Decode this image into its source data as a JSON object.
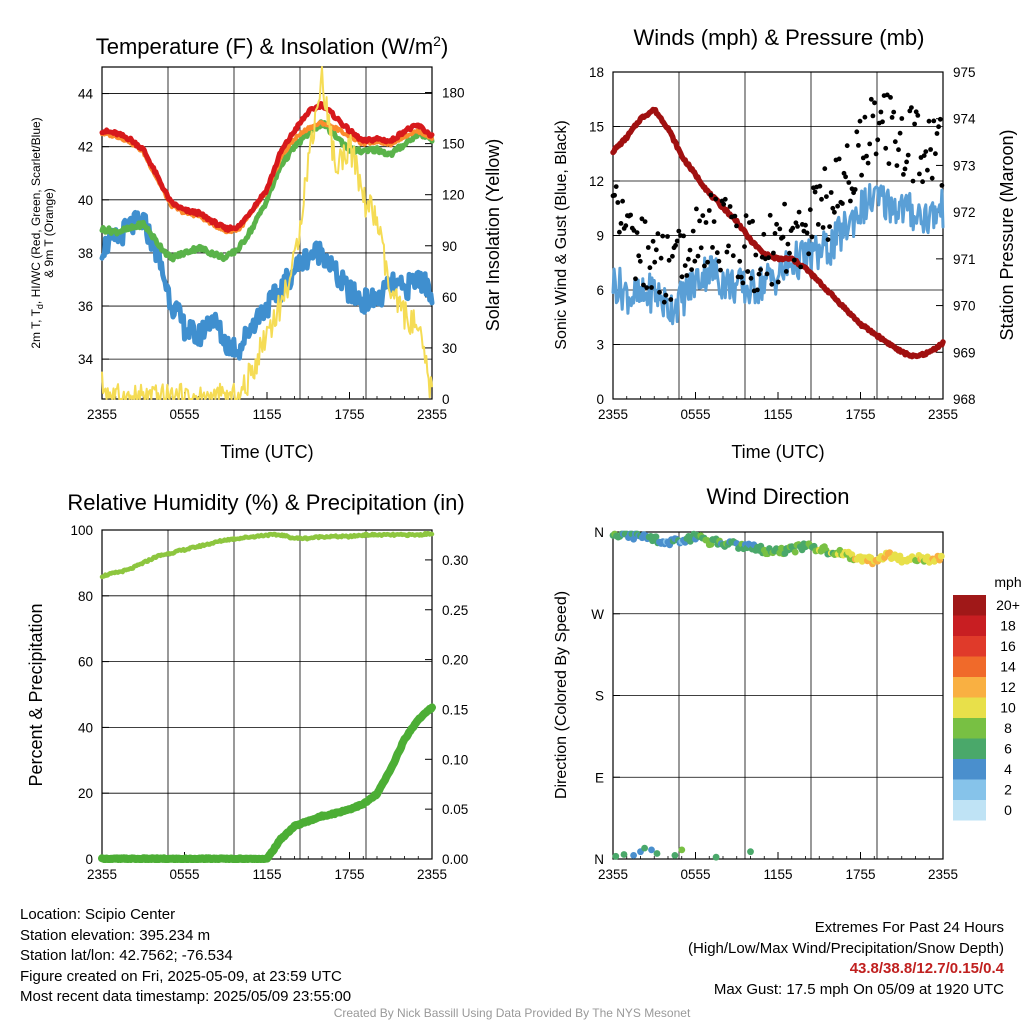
{
  "colors": {
    "red": "#d7191c",
    "orange": "#fb8c2c",
    "green": "#5ab34a",
    "blue": "#3f8fcf",
    "yellow": "#f5dc55",
    "maroon": "#a01010",
    "wind": "#5a9fd6",
    "gust": "#000000",
    "rh": "#8dc63f",
    "precip": "#4cae35"
  },
  "x_ticks": [
    "2355",
    "0555",
    "1155",
    "1755",
    "2355"
  ],
  "panels": {
    "temperature": {
      "title_main": "Temperature (F) & Insolation (W/m",
      "title_sup": "2",
      "title_end": ")",
      "xlabel": "Time (UTC)",
      "ylabel_left_lines": [
        "2m T, T",
        "d",
        ", HI/WC (Red, Green, Scarlet/Blue)",
        "& 9m T (Orange)"
      ],
      "ylabel_right": "Solar Insolation (Yellow)",
      "y_left_ticks": [
        "34",
        "36",
        "38",
        "40",
        "42",
        "44"
      ],
      "y_right_ticks": [
        "0",
        "30",
        "60",
        "90",
        "120",
        "150",
        "180"
      ]
    },
    "winds": {
      "title": "Winds (mph) & Pressure (mb)",
      "xlabel": "Time (UTC)",
      "ylabel_left": "Sonic Wind & Gust (Blue, Black)",
      "ylabel_right": "Station Pressure (Maroon)",
      "y_left_ticks": [
        "0",
        "3",
        "6",
        "9",
        "12",
        "15",
        "18"
      ],
      "y_right_ticks": [
        "968",
        "969",
        "970",
        "971",
        "972",
        "973",
        "974",
        "975"
      ]
    },
    "humidity": {
      "title": "Relative Humidity (%) & Precipitation (in)",
      "ylabel_left": "Percent & Precipitation",
      "y_left_ticks": [
        "0",
        "20",
        "40",
        "60",
        "80",
        "100"
      ],
      "y_right_ticks": [
        "0.00",
        "0.05",
        "0.10",
        "0.15",
        "0.20",
        "0.25",
        "0.30"
      ]
    },
    "direction": {
      "title": "Wind Direction",
      "ylabel_left": "Direction (Colored By Speed)",
      "y_left_ticks": [
        "N",
        "E",
        "S",
        "W",
        "N"
      ],
      "legend_unit": "mph",
      "legend_labels": [
        "0",
        "2",
        "4",
        "6",
        "8",
        "10",
        "12",
        "14",
        "16",
        "18",
        "20+"
      ],
      "legend_colors": [
        "#bfe3f5",
        "#86c3ea",
        "#4a8fcd",
        "#4aa86a",
        "#78c043",
        "#e8e04a",
        "#f9b042",
        "#f06a2a",
        "#e03a2a",
        "#c81e22",
        "#a01818"
      ]
    }
  },
  "chart_data": [
    {
      "type": "line",
      "title": "Temperature (F) & Insolation (W/m2)",
      "xlabel": "Time (UTC)",
      "ylabel": "2m T, Td, HI/WC (Red, Green, Scarlet/Blue) & 9m T (Orange)",
      "y2label": "Solar Insolation (Yellow)",
      "x_hours": [
        0,
        1,
        2,
        3,
        4,
        5,
        6,
        7,
        8,
        9,
        10,
        11,
        12,
        13,
        14,
        15,
        16,
        17,
        18,
        19,
        20,
        21,
        22,
        23,
        24
      ],
      "ylim": [
        32.5,
        45
      ],
      "y2lim": [
        0,
        195
      ],
      "series": [
        {
          "name": "2m T",
          "axis": "left",
          "values": [
            42.6,
            42.5,
            42.3,
            41.9,
            40.9,
            39.9,
            39.6,
            39.5,
            39.2,
            38.9,
            39.0,
            39.7,
            40.4,
            41.8,
            42.6,
            43.3,
            43.6,
            43.1,
            42.6,
            42.2,
            42.3,
            42.2,
            42.6,
            42.8,
            42.4
          ]
        },
        {
          "name": "9m T",
          "axis": "left",
          "values": [
            42.5,
            42.4,
            42.2,
            41.8,
            40.8,
            39.8,
            39.5,
            39.4,
            39.1,
            38.8,
            38.9,
            39.6,
            40.3,
            41.6,
            42.3,
            42.7,
            42.9,
            42.7,
            42.4,
            42.1,
            42.2,
            42.1,
            42.4,
            42.6,
            42.3
          ]
        },
        {
          "name": "Td",
          "axis": "left",
          "values": [
            38.9,
            38.8,
            38.9,
            39.1,
            38.4,
            37.8,
            38.0,
            38.2,
            38.0,
            37.8,
            38.2,
            39.0,
            40.0,
            41.3,
            42.0,
            42.5,
            42.9,
            42.4,
            41.9,
            41.8,
            41.9,
            41.7,
            42.1,
            42.5,
            42.3
          ]
        },
        {
          "name": "HI/WC",
          "axis": "left",
          "values": [
            38.2,
            38.5,
            39.0,
            39.2,
            38.0,
            36.2,
            35.2,
            34.8,
            35.6,
            34.6,
            34.4,
            35.4,
            36.0,
            36.6,
            37.4,
            37.9,
            38.1,
            37.2,
            36.5,
            36.2,
            36.2,
            36.8,
            36.6,
            37.1,
            36.5
          ]
        },
        {
          "name": "Solar Insolation",
          "axis": "right",
          "values": [
            8,
            0,
            0,
            0,
            0,
            0,
            0,
            0,
            0,
            0,
            0,
            18,
            40,
            55,
            80,
            140,
            190,
            135,
            150,
            118,
            105,
            60,
            50,
            40,
            2
          ]
        }
      ]
    },
    {
      "type": "line",
      "title": "Winds (mph) & Pressure (mb)",
      "xlabel": "Time (UTC)",
      "ylabel": "Sonic Wind & Gust (Blue, Black)",
      "y2label": "Station Pressure (Maroon)",
      "x_hours": [
        0,
        1,
        2,
        3,
        4,
        5,
        6,
        7,
        8,
        9,
        10,
        11,
        12,
        13,
        14,
        15,
        16,
        17,
        18,
        19,
        20,
        21,
        22,
        23,
        24
      ],
      "ylim": [
        0,
        18
      ],
      "y2lim": [
        968,
        975
      ],
      "series": [
        {
          "name": "Sonic Wind",
          "axis": "left",
          "values": [
            6.5,
            5.8,
            5.5,
            6.0,
            5.0,
            5.5,
            6.5,
            7.2,
            6.5,
            6.2,
            6.0,
            6.5,
            6.8,
            7.5,
            7.8,
            8.0,
            8.5,
            9.5,
            10.5,
            11.0,
            10.8,
            10.5,
            10.2,
            10.0,
            10.5
          ]
        },
        {
          "name": "Gust",
          "axis": "left",
          "values": [
            10.0,
            8.5,
            8.0,
            7.5,
            7.0,
            8.0,
            8.5,
            9.5,
            9.0,
            8.5,
            8.0,
            8.0,
            8.5,
            9.0,
            9.5,
            10.5,
            11.0,
            12.5,
            14.0,
            15.0,
            15.0,
            14.5,
            14.0,
            13.5,
            13.5
          ]
        },
        {
          "name": "Station Pressure",
          "axis": "right",
          "values": [
            973.3,
            973.6,
            974.0,
            974.2,
            973.8,
            973.2,
            972.8,
            972.4,
            972.1,
            971.8,
            971.4,
            971.1,
            971.0,
            971.0,
            970.8,
            970.5,
            970.2,
            969.9,
            969.6,
            969.4,
            969.2,
            969.0,
            968.9,
            969.0,
            969.2
          ]
        }
      ]
    },
    {
      "type": "line",
      "title": "Relative Humidity (%) & Precipitation (in)",
      "ylabel": "Percent & Precipitation",
      "x_hours": [
        0,
        1,
        2,
        3,
        4,
        5,
        6,
        7,
        8,
        9,
        10,
        11,
        12,
        13,
        14,
        15,
        16,
        17,
        18,
        19,
        20,
        21,
        22,
        23,
        24
      ],
      "ylim": [
        0,
        100
      ],
      "y2lim": [
        0,
        0.33
      ],
      "series": [
        {
          "name": "Relative Humidity",
          "axis": "left",
          "values": [
            86,
            87,
            88,
            90,
            92,
            93,
            94,
            95,
            96,
            97,
            97.5,
            98,
            98.5,
            98.5,
            97.5,
            97.5,
            98,
            98,
            98,
            98.5,
            98.5,
            98.5,
            98.5,
            98.5,
            99
          ]
        },
        {
          "name": "Precipitation",
          "axis": "right",
          "values": [
            0,
            0,
            0,
            0,
            0,
            0,
            0,
            0,
            0,
            0,
            0,
            0,
            0,
            0.02,
            0.033,
            0.038,
            0.043,
            0.046,
            0.05,
            0.055,
            0.065,
            0.09,
            0.12,
            0.14,
            0.152
          ]
        }
      ]
    },
    {
      "type": "scatter",
      "title": "Wind Direction",
      "ylabel": "Direction (Colored By Speed)",
      "x_hours": [
        0,
        1,
        2,
        3,
        4,
        5,
        6,
        7,
        8,
        9,
        10,
        11,
        12,
        13,
        14,
        15,
        16,
        17,
        18,
        19,
        20,
        21,
        22,
        23,
        24
      ],
      "direction_deg": [
        358,
        357,
        355,
        352,
        350,
        348,
        355,
        350,
        348,
        345,
        343,
        340,
        338,
        340,
        345,
        342,
        338,
        335,
        330,
        328,
        335,
        330,
        332,
        330,
        330
      ],
      "speed_mph": [
        6,
        5,
        4,
        5,
        4,
        4,
        6,
        7,
        6,
        6,
        5,
        6,
        7,
        7,
        7,
        8,
        8,
        9,
        10,
        11,
        11,
        10,
        10,
        10,
        11
      ],
      "near_north_points": {
        "x_hours": [
          0.2,
          0.8,
          1.5,
          2.0,
          2.3,
          2.8,
          3.2,
          4.5,
          5.0,
          7.5,
          10.0
        ],
        "direction_deg": [
          3,
          5,
          4,
          8,
          12,
          10,
          6,
          4,
          10,
          2,
          8
        ],
        "speed_mph": [
          6,
          5,
          3,
          4,
          5,
          3,
          6,
          6,
          7,
          6,
          6
        ]
      }
    }
  ],
  "footer": {
    "location": "Location: Scipio Center",
    "elevation": "Station elevation: 395.234 m",
    "latlon": "Station lat/lon: 42.7562; -76.534",
    "created": "Figure created on Fri, 2025-05-09, at 23:59 UTC",
    "recent": "Most recent data timestamp: 2025/05/09 23:55:00",
    "extremes_title": "Extremes For Past 24 Hours",
    "extremes_desc": "(High/Low/Max Wind/Precipitation/Snow Depth)",
    "extremes_values": "43.8/38.8/12.7/0.15/0.4",
    "max_gust": "Max Gust: 17.5 mph On 05/09 at 1920 UTC",
    "credit": "Created By Nick Bassill Using Data Provided By The NYS Mesonet"
  }
}
